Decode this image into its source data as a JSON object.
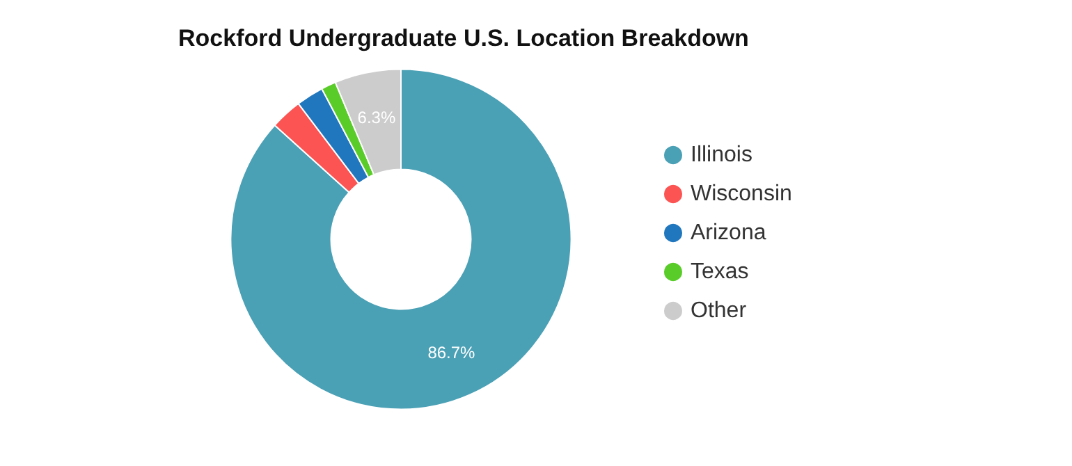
{
  "chart_data": {
    "type": "donut",
    "title": "Rockford Undergraduate U.S. Location Breakdown",
    "categories": [
      "Illinois",
      "Wisconsin",
      "Arizona",
      "Texas",
      "Other"
    ],
    "values": [
      86.7,
      3.0,
      2.6,
      1.4,
      6.3
    ],
    "colors": [
      "#4aa0b5",
      "#fc5353",
      "#2177bd",
      "#5acc2a",
      "#cccccc"
    ],
    "value_labels": [
      "86.7%",
      null,
      null,
      null,
      "6.3%"
    ],
    "legend": "right"
  }
}
